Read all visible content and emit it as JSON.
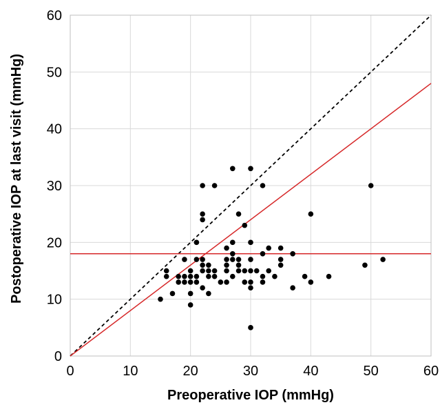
{
  "chart_data": {
    "type": "scatter",
    "title": "",
    "xlabel": "Preoperative IOP (mmHg)",
    "ylabel": "Postoperative IOP at last visit (mmHg)",
    "xlim": [
      0,
      60
    ],
    "ylim": [
      0,
      60
    ],
    "x_ticks": [
      "0",
      "10",
      "20",
      "30",
      "40",
      "50",
      "60"
    ],
    "y_ticks": [
      "0",
      "10",
      "20",
      "30",
      "40",
      "50",
      "60"
    ],
    "grid": true,
    "legend": "none",
    "colors": {
      "points": "#000000",
      "identity_line": "#000000",
      "red_lines": "#d62728",
      "grid": "#d9d9d9"
    },
    "reference_lines": [
      {
        "kind": "identity",
        "style": "dashed",
        "color": "#000000",
        "from": [
          0,
          0
        ],
        "to": [
          60,
          60
        ]
      },
      {
        "kind": "proportional",
        "style": "solid",
        "color": "#d62728",
        "from": [
          0,
          0
        ],
        "to": [
          60,
          48
        ]
      },
      {
        "kind": "horizontal",
        "style": "solid",
        "color": "#d62728",
        "y": 18
      }
    ],
    "points": [
      [
        15,
        10
      ],
      [
        16,
        15
      ],
      [
        16,
        14
      ],
      [
        17,
        11
      ],
      [
        18,
        13
      ],
      [
        18,
        14
      ],
      [
        19,
        17
      ],
      [
        19,
        13
      ],
      [
        19,
        14
      ],
      [
        20,
        15
      ],
      [
        20,
        14
      ],
      [
        20,
        13
      ],
      [
        20,
        11
      ],
      [
        20,
        9
      ],
      [
        21,
        20
      ],
      [
        21,
        17
      ],
      [
        21,
        14
      ],
      [
        21,
        13
      ],
      [
        22,
        30
      ],
      [
        22,
        25
      ],
      [
        22,
        24
      ],
      [
        22,
        17
      ],
      [
        22,
        16
      ],
      [
        22,
        15
      ],
      [
        22,
        12
      ],
      [
        23,
        16
      ],
      [
        23,
        15
      ],
      [
        23,
        14
      ],
      [
        23,
        11
      ],
      [
        24,
        30
      ],
      [
        24,
        15
      ],
      [
        24,
        14
      ],
      [
        25,
        13
      ],
      [
        26,
        19
      ],
      [
        26,
        17
      ],
      [
        26,
        16
      ],
      [
        26,
        15
      ],
      [
        26,
        13
      ],
      [
        27,
        33
      ],
      [
        27,
        20
      ],
      [
        27,
        18
      ],
      [
        27,
        17
      ],
      [
        27,
        14
      ],
      [
        28,
        25
      ],
      [
        28,
        17
      ],
      [
        28,
        16
      ],
      [
        28,
        15
      ],
      [
        29,
        23
      ],
      [
        29,
        15
      ],
      [
        29,
        13
      ],
      [
        30,
        33
      ],
      [
        30,
        20
      ],
      [
        30,
        17
      ],
      [
        30,
        15
      ],
      [
        30,
        13
      ],
      [
        30,
        12
      ],
      [
        30,
        5
      ],
      [
        31,
        15
      ],
      [
        32,
        30
      ],
      [
        32,
        18
      ],
      [
        32,
        14
      ],
      [
        32,
        13
      ],
      [
        33,
        19
      ],
      [
        33,
        15
      ],
      [
        34,
        14
      ],
      [
        35,
        19
      ],
      [
        35,
        17
      ],
      [
        35,
        16
      ],
      [
        37,
        18
      ],
      [
        37,
        12
      ],
      [
        39,
        14
      ],
      [
        40,
        25
      ],
      [
        40,
        13
      ],
      [
        43,
        14
      ],
      [
        49,
        16
      ],
      [
        50,
        30
      ],
      [
        52,
        17
      ]
    ]
  }
}
